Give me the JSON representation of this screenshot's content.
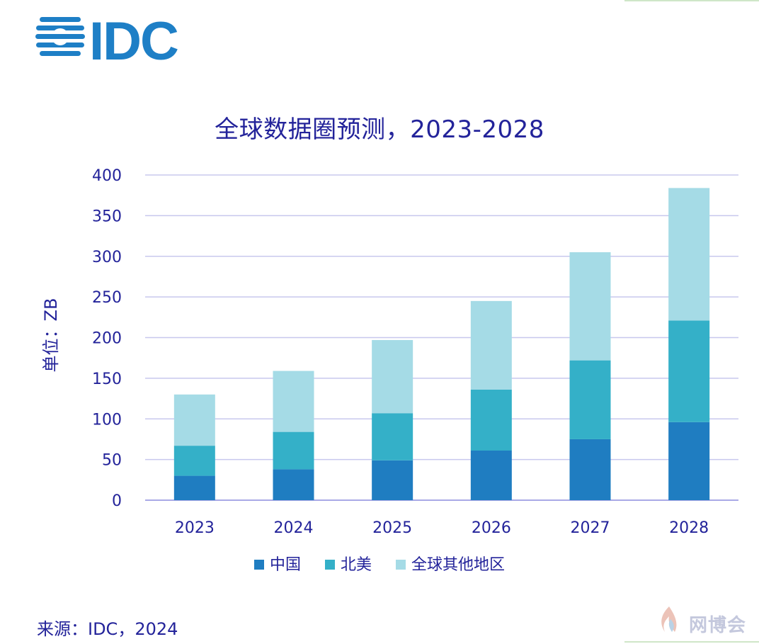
{
  "logo": {
    "text": "IDC",
    "icon": "idc-globe-stripes-logo",
    "color": "#1e7fc6"
  },
  "footer": {
    "source": "来源：IDC，2024"
  },
  "watermark": {
    "text": "网博会",
    "icon": "flame-icon"
  },
  "colors": {
    "china": "#1f7dc1",
    "north_america": "#34b0c8",
    "rest_of_world": "#a5dbe6",
    "text": "#23239a",
    "grid": "#c8c8ee"
  },
  "chart_data": {
    "type": "bar",
    "stacked": true,
    "title": "全球数据圈预测，2023-2028",
    "ylabel": "单位：ZB",
    "xlabel": "",
    "ylim": [
      0,
      400
    ],
    "yticks": [
      0,
      50,
      100,
      150,
      200,
      250,
      300,
      350,
      400
    ],
    "categories": [
      "2023",
      "2024",
      "2025",
      "2026",
      "2027",
      "2028"
    ],
    "grid": true,
    "legend_position": "bottom",
    "series": [
      {
        "name": "中国",
        "color": "#1f7dc1",
        "values": [
          30,
          38,
          49,
          61,
          75,
          96
        ]
      },
      {
        "name": "北美",
        "color": "#34b0c8",
        "values": [
          37,
          46,
          58,
          75,
          97,
          125
        ]
      },
      {
        "name": "全球其他地区",
        "color": "#a5dbe6",
        "values": [
          63,
          75,
          90,
          109,
          133,
          163
        ]
      }
    ]
  }
}
